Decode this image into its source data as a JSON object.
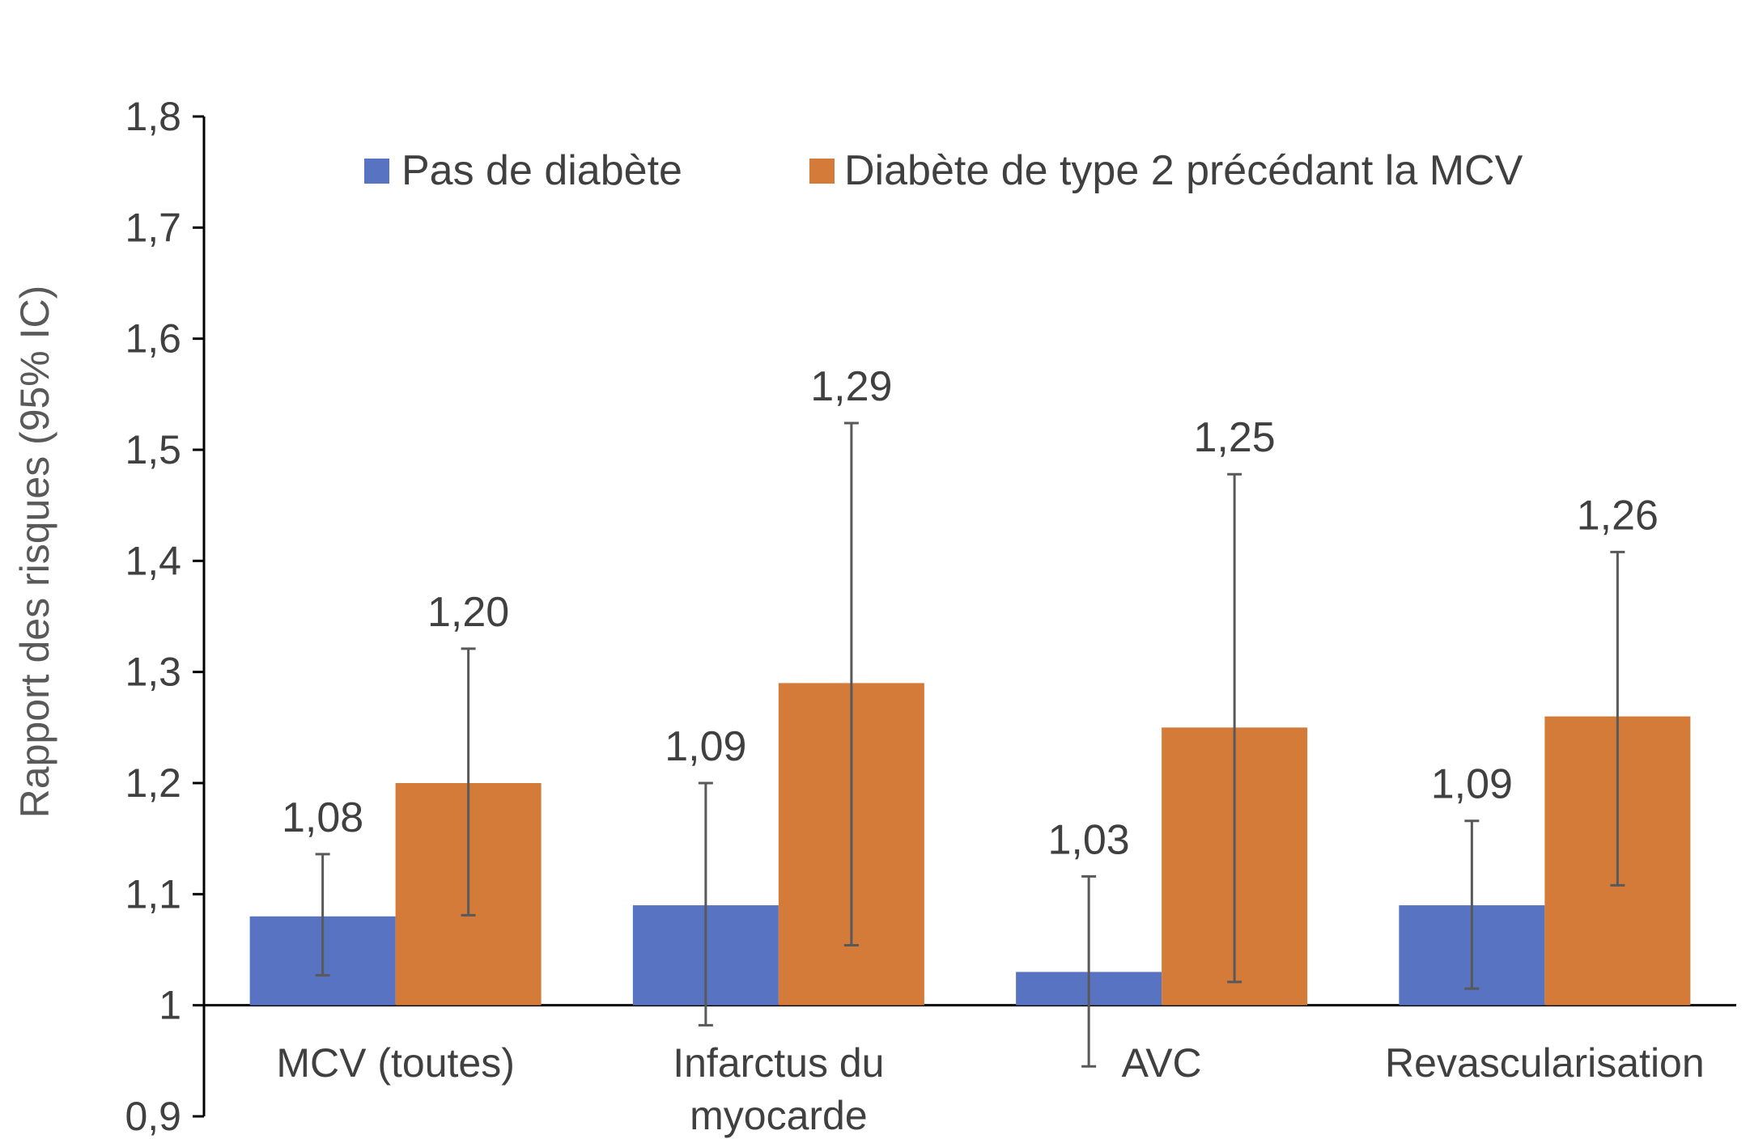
{
  "chart_data": {
    "type": "bar",
    "title": "",
    "xlabel": "",
    "ylabel": "Rapport des risques (95% IC)",
    "ylim": [
      0.9,
      1.8
    ],
    "baseline": 1,
    "yticks": [
      0.9,
      1,
      1.1,
      1.2,
      1.3,
      1.4,
      1.5,
      1.6,
      1.7,
      1.8
    ],
    "ytick_labels": [
      "0,9",
      "1",
      "1,1",
      "1,2",
      "1,3",
      "1,4",
      "1,5",
      "1,6",
      "1,7",
      "1,8"
    ],
    "grid": false,
    "legend_position": "top",
    "categories": [
      [
        "MCV (toutes)"
      ],
      [
        "Infarctus du",
        "myocarde"
      ],
      [
        "AVC"
      ],
      [
        "Revascularisation"
      ]
    ],
    "series": [
      {
        "name": "Pas de diabète",
        "color": "#5773C1",
        "values": [
          1.08,
          1.09,
          1.03,
          1.09
        ],
        "labels": [
          "1,08",
          "1,09",
          "1,03",
          "1,09"
        ],
        "ci_low": [
          1.027,
          0.982,
          0.945,
          1.015
        ],
        "ci_high": [
          1.136,
          1.2,
          1.116,
          1.166
        ]
      },
      {
        "name": "Diabète de type 2 précédant la MCV",
        "color": "#D47B3A",
        "values": [
          1.2,
          1.29,
          1.25,
          1.26
        ],
        "labels": [
          "1,20",
          "1,29",
          "1,25",
          "1,26"
        ],
        "ci_low": [
          1.081,
          1.054,
          1.021,
          1.108
        ],
        "ci_high": [
          1.321,
          1.524,
          1.478,
          1.408
        ]
      }
    ]
  }
}
